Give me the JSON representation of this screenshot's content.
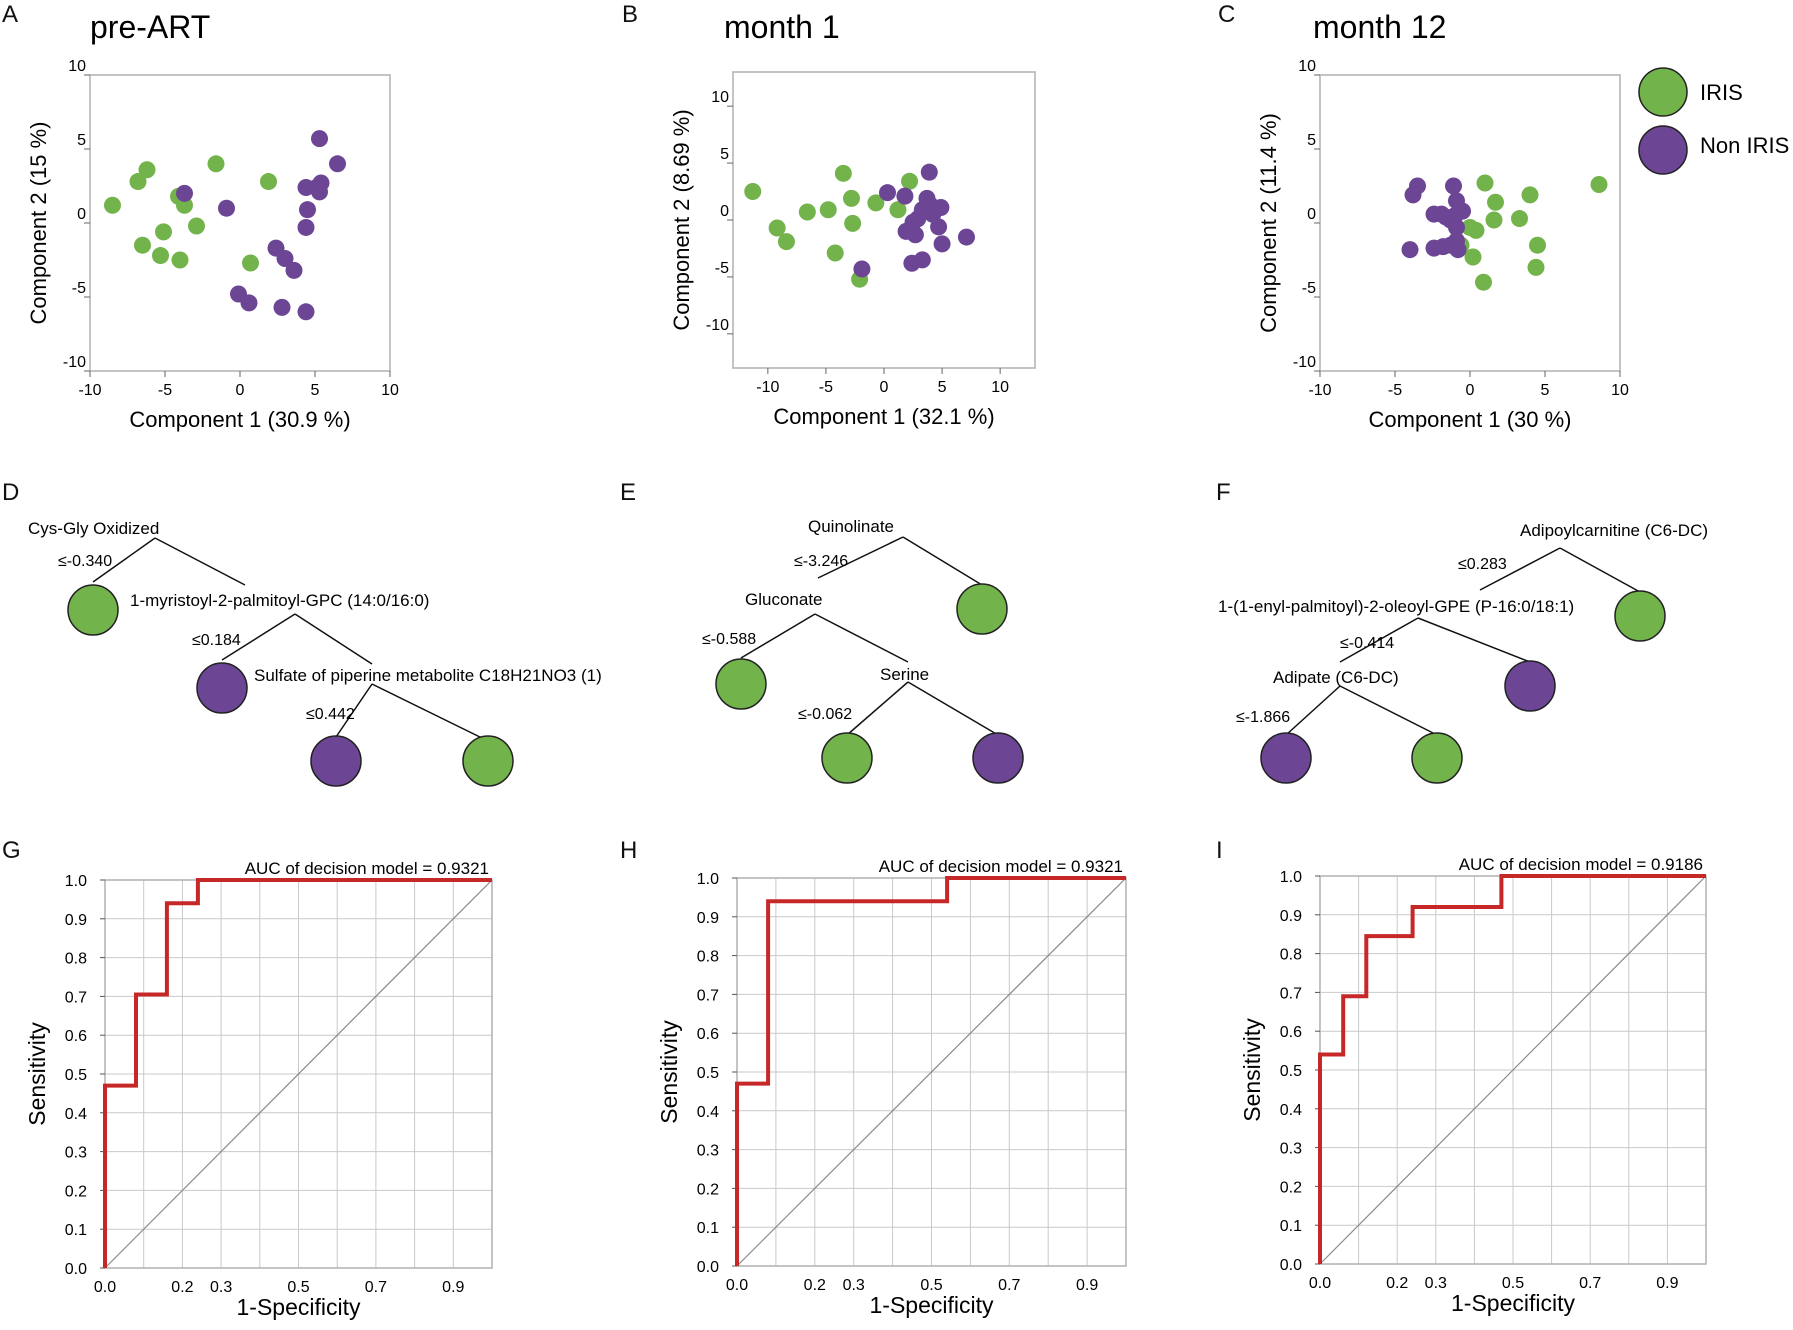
{
  "colors": {
    "iris": "#72B34B",
    "non_iris": "#6C4594",
    "roc": "#C62828",
    "frame": "#B0B0B0",
    "grid": "#C9C9C9",
    "diag": "#8A8A8A"
  },
  "legend": {
    "items": [
      {
        "label": "IRIS",
        "group": "iris"
      },
      {
        "label": "Non IRIS",
        "group": "non_iris"
      }
    ]
  },
  "chart_data": [
    {
      "type": "scatter",
      "panel": "A",
      "title": "pre-ART",
      "xlabel": "Component 1  (30.9 %)",
      "ylabel": "Component 2  (15 %)",
      "xlim": [
        -10,
        10
      ],
      "ylim": [
        -10,
        10
      ],
      "xticks": [
        -10,
        -5,
        0,
        5,
        10
      ],
      "yticks": [
        -10,
        -5,
        0,
        5,
        10
      ],
      "series": [
        {
          "name": "IRIS",
          "group": "iris",
          "points": [
            [
              -8.5,
              1.2
            ],
            [
              -6.8,
              2.8
            ],
            [
              -6.2,
              3.6
            ],
            [
              -6.5,
              -1.5
            ],
            [
              -5.3,
              -2.2
            ],
            [
              -5.1,
              -0.6
            ],
            [
              -4.1,
              1.8
            ],
            [
              -3.7,
              1.2
            ],
            [
              -4.0,
              -2.5
            ],
            [
              -2.9,
              -0.2
            ],
            [
              -1.6,
              4.0
            ],
            [
              1.9,
              2.8
            ],
            [
              0.7,
              -2.7
            ]
          ]
        },
        {
          "name": "Non IRIS",
          "group": "non_iris",
          "points": [
            [
              -3.7,
              2.0
            ],
            [
              -0.9,
              1.0
            ],
            [
              -0.1,
              -4.8
            ],
            [
              0.6,
              -5.4
            ],
            [
              2.4,
              -1.7
            ],
            [
              3.0,
              -2.4
            ],
            [
              3.6,
              -3.2
            ],
            [
              2.8,
              -5.7
            ],
            [
              4.4,
              -6.0
            ],
            [
              4.4,
              -0.3
            ],
            [
              4.5,
              0.9
            ],
            [
              4.4,
              2.4
            ],
            [
              5.1,
              2.4
            ],
            [
              5.3,
              2.1
            ],
            [
              5.4,
              2.7
            ],
            [
              5.3,
              5.7
            ],
            [
              6.5,
              4.0
            ]
          ]
        }
      ]
    },
    {
      "type": "scatter",
      "panel": "B",
      "title": "month 1",
      "xlabel": "Component 1  (32.1 %)",
      "ylabel": "Component 2  (8.69 %)",
      "xlim": [
        -13,
        13
      ],
      "ylim": [
        -13,
        13
      ],
      "xticks": [
        -10,
        -5,
        0,
        5,
        10
      ],
      "yticks": [
        -10,
        -5,
        0,
        5,
        10
      ],
      "series": [
        {
          "name": "IRIS",
          "group": "iris",
          "points": [
            [
              -11.3,
              2.5
            ],
            [
              -9.2,
              -0.7
            ],
            [
              -8.4,
              -1.9
            ],
            [
              -6.6,
              0.7
            ],
            [
              -4.8,
              0.9
            ],
            [
              -4.2,
              -2.9
            ],
            [
              -3.5,
              4.1
            ],
            [
              -2.8,
              1.9
            ],
            [
              -2.7,
              -0.3
            ],
            [
              -2.1,
              -5.2
            ],
            [
              -0.7,
              1.5
            ],
            [
              1.2,
              0.9
            ],
            [
              2.2,
              3.4
            ]
          ]
        },
        {
          "name": "Non IRIS",
          "group": "non_iris",
          "points": [
            [
              0.3,
              2.4
            ],
            [
              1.8,
              2.1
            ],
            [
              1.9,
              -1.0
            ],
            [
              2.5,
              -0.2
            ],
            [
              2.7,
              -1.3
            ],
            [
              2.9,
              0.1
            ],
            [
              3.3,
              0.9
            ],
            [
              3.7,
              1.9
            ],
            [
              4.0,
              1.3
            ],
            [
              4.2,
              0.5
            ],
            [
              3.9,
              4.2
            ],
            [
              4.7,
              -0.6
            ],
            [
              4.9,
              1.1
            ],
            [
              5.0,
              -2.1
            ],
            [
              2.4,
              -3.8
            ],
            [
              3.3,
              -3.5
            ],
            [
              -1.9,
              -4.3
            ],
            [
              7.1,
              -1.5
            ]
          ]
        }
      ]
    },
    {
      "type": "scatter",
      "panel": "C",
      "title": "month 12",
      "xlabel": "Component 1  (30 %)",
      "ylabel": "Component 2  (11.4 %)",
      "xlim": [
        -10,
        10
      ],
      "ylim": [
        -10,
        10
      ],
      "xticks": [
        -10,
        -5,
        0,
        5,
        10
      ],
      "yticks": [
        -10,
        -5,
        0,
        5,
        10
      ],
      "series": [
        {
          "name": "IRIS",
          "group": "iris",
          "points": [
            [
              1.0,
              2.7
            ],
            [
              1.7,
              1.4
            ],
            [
              1.6,
              0.2
            ],
            [
              4.0,
              1.9
            ],
            [
              3.3,
              0.3
            ],
            [
              0.0,
              -0.3
            ],
            [
              0.4,
              -0.5
            ],
            [
              -0.6,
              -1.5
            ],
            [
              0.2,
              -2.3
            ],
            [
              0.9,
              -4.0
            ],
            [
              4.5,
              -1.5
            ],
            [
              4.4,
              -3.0
            ],
            [
              8.6,
              2.6
            ]
          ]
        },
        {
          "name": "Non IRIS",
          "group": "non_iris",
          "points": [
            [
              -4.0,
              -1.8
            ],
            [
              -3.5,
              2.5
            ],
            [
              -3.8,
              1.9
            ],
            [
              -2.4,
              0.6
            ],
            [
              -1.9,
              0.6
            ],
            [
              -1.6,
              0.4
            ],
            [
              -1.3,
              0.2
            ],
            [
              -1.0,
              0.5
            ],
            [
              -0.9,
              1.5
            ],
            [
              -0.5,
              0.8
            ],
            [
              -1.1,
              2.5
            ],
            [
              -0.9,
              -0.3
            ],
            [
              -1.3,
              -1.5
            ],
            [
              -2.4,
              -1.7
            ],
            [
              -1.8,
              -1.6
            ],
            [
              -0.9,
              -1.2
            ],
            [
              -0.8,
              -1.8
            ]
          ]
        }
      ]
    },
    {
      "type": "tree",
      "panel": "D",
      "nodes": [
        {
          "id": "n1",
          "label": "Cys-Gly Oxidized"
        },
        {
          "id": "n2",
          "label": "1-myristoyl-2-palmitoyl-GPC (14:0/16:0)"
        },
        {
          "id": "n3",
          "label": "Sulfate of piperine metabolite C18H21NO3 (1)"
        }
      ],
      "thresholds": [
        "≤-0.340",
        "≤0.184",
        "≤0.442"
      ],
      "leaves": [
        {
          "id": "l1",
          "class": "IRIS"
        },
        {
          "id": "l2",
          "class": "Non IRIS"
        },
        {
          "id": "l3",
          "class": "Non IRIS"
        },
        {
          "id": "l4",
          "class": "IRIS"
        }
      ]
    },
    {
      "type": "tree",
      "panel": "E",
      "nodes": [
        {
          "id": "n1",
          "label": "Quinolinate"
        },
        {
          "id": "n2",
          "label": "Gluconate"
        },
        {
          "id": "n3",
          "label": "Serine"
        }
      ],
      "thresholds": [
        "≤-3.246",
        "≤-0.588",
        "≤-0.062"
      ],
      "leaves": [
        {
          "id": "l1",
          "class": "IRIS"
        },
        {
          "id": "l2",
          "class": "IRIS"
        },
        {
          "id": "l3",
          "class": "IRIS"
        },
        {
          "id": "l4",
          "class": "Non IRIS"
        }
      ]
    },
    {
      "type": "tree",
      "panel": "F",
      "nodes": [
        {
          "id": "n1",
          "label": "Adipoylcarnitine (C6-DC)"
        },
        {
          "id": "n2",
          "label": "1-(1-enyl-palmitoyl)-2-oleoyl-GPE (P-16:0/18:1)"
        },
        {
          "id": "n3",
          "label": "Adipate (C6-DC)"
        }
      ],
      "thresholds": [
        "≤0.283",
        "≤-0.414",
        "≤-1.866"
      ],
      "leaves": [
        {
          "id": "l1",
          "class": "IRIS"
        },
        {
          "id": "l2",
          "class": "Non IRIS"
        },
        {
          "id": "l3",
          "class": "Non IRIS"
        },
        {
          "id": "l4",
          "class": "IRIS"
        }
      ]
    },
    {
      "type": "line",
      "panel": "G",
      "annotation": "AUC of decision model = 0.9321",
      "xlabel": "1-Specificity",
      "ylabel": "Sensitivity",
      "xlim": [
        0,
        1
      ],
      "ylim": [
        0,
        1
      ],
      "xticks": [
        "0.0",
        "0.2",
        "0.3",
        "0.5",
        "0.7",
        "0.9"
      ],
      "yticks": [
        "0.0",
        "0.1",
        "0.2",
        "0.3",
        "0.4",
        "0.5",
        "0.6",
        "0.7",
        "0.8",
        "0.9",
        "1.0"
      ],
      "roc": [
        [
          0,
          0
        ],
        [
          0,
          0.47
        ],
        [
          0.08,
          0.47
        ],
        [
          0.08,
          0.705
        ],
        [
          0.16,
          0.705
        ],
        [
          0.16,
          0.94
        ],
        [
          0.24,
          0.94
        ],
        [
          0.24,
          1.0
        ],
        [
          1.0,
          1.0
        ]
      ]
    },
    {
      "type": "line",
      "panel": "H",
      "annotation": "AUC of decision model = 0.9321",
      "xlabel": "1-Specificity",
      "ylabel": "Sensitivity",
      "xlim": [
        0,
        1
      ],
      "ylim": [
        0,
        1
      ],
      "xticks": [
        "0.0",
        "0.2",
        "0.3",
        "0.5",
        "0.7",
        "0.9"
      ],
      "yticks": [
        "0.0",
        "0.1",
        "0.2",
        "0.3",
        "0.4",
        "0.5",
        "0.6",
        "0.7",
        "0.8",
        "0.9",
        "1.0"
      ],
      "roc": [
        [
          0,
          0
        ],
        [
          0,
          0.47
        ],
        [
          0.08,
          0.47
        ],
        [
          0.08,
          0.94
        ],
        [
          0.54,
          0.94
        ],
        [
          0.54,
          1.0
        ],
        [
          1.0,
          1.0
        ]
      ]
    },
    {
      "type": "line",
      "panel": "I",
      "annotation": "AUC of decision model = 0.9186",
      "xlabel": "1-Specificity",
      "ylabel": "Sensitivity",
      "xlim": [
        0,
        1
      ],
      "ylim": [
        0,
        1
      ],
      "xticks": [
        "0.0",
        "0.2",
        "0.3",
        "0.5",
        "0.7",
        "0.9"
      ],
      "yticks": [
        "0.0",
        "0.1",
        "0.2",
        "0.3",
        "0.4",
        "0.5",
        "0.6",
        "0.7",
        "0.8",
        "0.9",
        "1.0"
      ],
      "roc": [
        [
          0,
          0
        ],
        [
          0,
          0.54
        ],
        [
          0.06,
          0.54
        ],
        [
          0.06,
          0.69
        ],
        [
          0.12,
          0.69
        ],
        [
          0.12,
          0.845
        ],
        [
          0.24,
          0.845
        ],
        [
          0.24,
          0.92
        ],
        [
          0.47,
          0.92
        ],
        [
          0.47,
          1.0
        ],
        [
          1.0,
          1.0
        ]
      ]
    }
  ]
}
